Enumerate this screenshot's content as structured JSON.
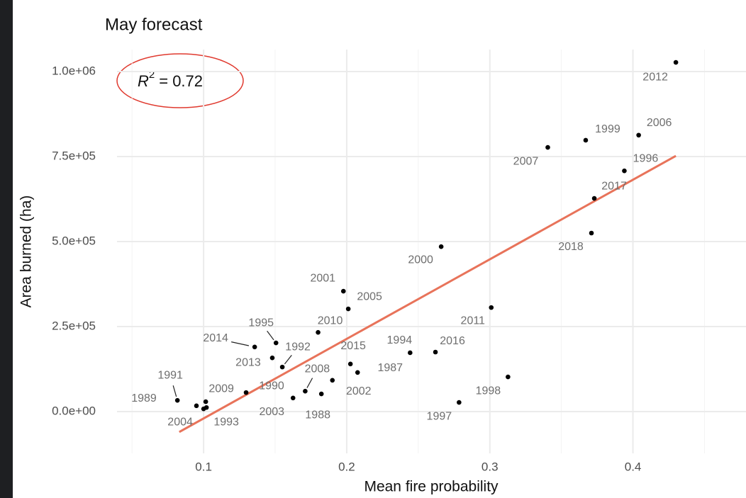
{
  "chart_data": {
    "type": "scatter",
    "title": "May forecast",
    "x_label": "Mean fire probability",
    "y_label": "Area burned (ha)",
    "annotation": {
      "symbol": "R",
      "exponent": "2",
      "text": "= 0.72"
    },
    "xlim": [
      0.0395,
      0.479
    ],
    "ylim": [
      -122900,
      1064600
    ],
    "xticks": [
      0.1,
      0.2,
      0.3,
      0.4
    ],
    "x_minor_ticks": [
      0.05,
      0.15,
      0.25,
      0.35,
      0.45
    ],
    "yticks": [
      {
        "value": 0,
        "label": "0.0e+00"
      },
      {
        "value": 250000,
        "label": "2.5e+05"
      },
      {
        "value": 500000,
        "label": "5.0e+05"
      },
      {
        "value": 750000,
        "label": "7.5e+05"
      },
      {
        "value": 1000000,
        "label": "1.0e+06"
      }
    ],
    "grid": true,
    "color": "#000000",
    "labels": [
      "1991",
      "1989",
      "2004",
      "2009",
      "1993",
      "1990",
      "2003",
      "1988",
      "2008",
      "2002",
      "2013",
      "1992",
      "2014",
      "1995",
      "2010",
      "2001",
      "2005",
      "2015",
      "1987",
      "1994",
      "2016",
      "2011",
      "1998",
      "1997",
      "2000",
      "2007",
      "1999",
      "2006",
      "1996",
      "2017",
      "2018",
      "2012"
    ],
    "x": [
      0.0817,
      0.095,
      0.1,
      0.1015,
      0.102,
      0.1297,
      0.1625,
      0.1823,
      0.171,
      0.19,
      0.148,
      0.155,
      0.1357,
      0.1506,
      0.18,
      0.1977,
      0.2011,
      0.2026,
      0.2076,
      0.2443,
      0.262,
      0.301,
      0.3127,
      0.2785,
      0.266,
      0.3405,
      0.367,
      0.404,
      0.394,
      0.373,
      0.371,
      0.43
    ],
    "y": [
      33000,
      17000,
      8000,
      29000,
      12000,
      56000,
      40000,
      52000,
      60000,
      92000,
      158000,
      131000,
      190000,
      202000,
      233000,
      354000,
      302000,
      140000,
      115000,
      173000,
      175000,
      306000,
      102000,
      27000,
      485000,
      777000,
      798000,
      813000,
      708000,
      627000,
      525000,
      1027000
    ],
    "fit_line": {
      "x": [
        0.083,
        0.43
      ],
      "y": [
        -60000,
        752000
      ],
      "color": "#e8735a"
    }
  }
}
